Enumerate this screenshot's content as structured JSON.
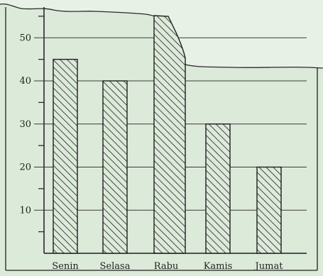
{
  "chart_data": {
    "type": "bar",
    "categories": [
      "Senin",
      "Selasa",
      "Rabu",
      "Kamis",
      "Jumat"
    ],
    "values": [
      45,
      40,
      55,
      30,
      20
    ],
    "ylim": [
      0,
      55
    ],
    "yticks": [
      "10",
      "20",
      "30",
      "40",
      "50"
    ],
    "title": "",
    "xlabel": "",
    "ylabel": "",
    "grid": true,
    "colors": {
      "background": "#dcebd9",
      "bar_outline": "#1f1f1f",
      "hatch": "#1f1f1f",
      "grid": "#3a3a3a"
    },
    "notes": {
      "rabu_bar_top": "torn edge"
    }
  }
}
